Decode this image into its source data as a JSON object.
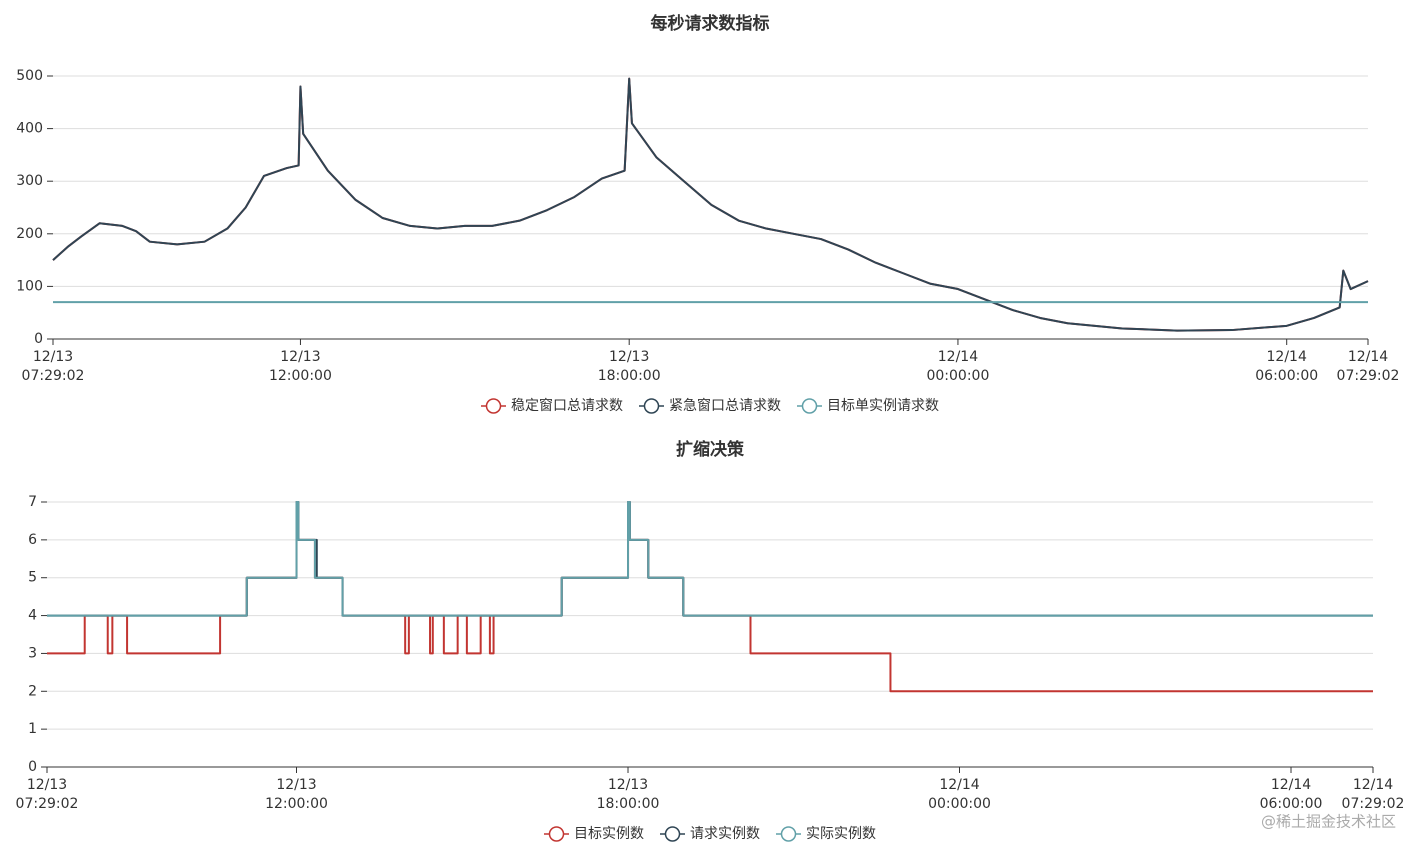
{
  "chart_data": [
    {
      "type": "line",
      "title": "每秒请求数指标",
      "xlim": [
        "12/13 07:29:02",
        "12/14 07:29:02"
      ],
      "xticks": [
        "12/13 07:29:02",
        "12/13 12:00:00",
        "12/13 18:00:00",
        "12/14 00:00:00",
        "12/14 06:00:00",
        "12/14 07:29:02"
      ],
      "ylim": [
        0,
        500
      ],
      "yticks": [
        0,
        100,
        200,
        300,
        400,
        500
      ],
      "grid": true,
      "series": [
        {
          "name": "稳定窗口总请求数",
          "color": "#c23531",
          "x": [
            "12/13 07:29:02",
            "12/13 07:45:00",
            "12/13 08:00:00",
            "12/13 08:20:00",
            "12/13 08:45:00",
            "12/13 09:00:00",
            "12/13 09:15:00",
            "12/13 09:45:00",
            "12/13 10:15:00",
            "12/13 10:40:00",
            "12/13 11:00:00",
            "12/13 11:20:00",
            "12/13 11:45:00",
            "12/13 11:58:00",
            "12/13 12:00:00",
            "12/13 12:03:00",
            "12/13 12:30:00",
            "12/13 13:00:00",
            "12/13 13:30:00",
            "12/13 14:00:00",
            "12/13 14:30:00",
            "12/13 15:00:00",
            "12/13 15:30:00",
            "12/13 16:00:00",
            "12/13 16:30:00",
            "12/13 17:00:00",
            "12/13 17:30:00",
            "12/13 17:55:00",
            "12/13 18:00:00",
            "12/13 18:03:00",
            "12/13 18:30:00",
            "12/13 19:00:00",
            "12/13 19:30:00",
            "12/13 20:00:00",
            "12/13 20:30:00",
            "12/13 21:00:00",
            "12/13 21:30:00",
            "12/13 22:00:00",
            "12/13 22:30:00",
            "12/13 23:00:00",
            "12/13 23:30:00",
            "12/14 00:00:00",
            "12/14 00:30:00",
            "12/14 01:00:00",
            "12/14 01:30:00",
            "12/14 02:00:00",
            "12/14 03:00:00",
            "12/14 04:00:00",
            "12/14 05:00:00",
            "12/14 06:00:00",
            "12/14 06:30:00",
            "12/14 06:58:00",
            "12/14 07:02:00",
            "12/14 07:10:00",
            "12/14 07:29:02"
          ],
          "values": [
            150,
            175,
            195,
            220,
            215,
            205,
            185,
            180,
            185,
            210,
            250,
            310,
            325,
            330,
            480,
            390,
            320,
            265,
            230,
            215,
            210,
            215,
            215,
            225,
            245,
            270,
            305,
            320,
            495,
            410,
            345,
            300,
            255,
            225,
            210,
            200,
            190,
            170,
            145,
            125,
            105,
            95,
            75,
            55,
            40,
            30,
            20,
            16,
            17,
            25,
            40,
            60,
            130,
            95,
            110
          ]
        },
        {
          "name": "紧急窗口总请求数",
          "color": "#2f4554",
          "x": [
            "12/13 07:29:02",
            "12/13 07:45:00",
            "12/13 08:00:00",
            "12/13 08:20:00",
            "12/13 08:45:00",
            "12/13 09:00:00",
            "12/13 09:15:00",
            "12/13 09:45:00",
            "12/13 10:15:00",
            "12/13 10:40:00",
            "12/13 11:00:00",
            "12/13 11:20:00",
            "12/13 11:45:00",
            "12/13 11:58:00",
            "12/13 12:00:00",
            "12/13 12:03:00",
            "12/13 12:30:00",
            "12/13 13:00:00",
            "12/13 13:30:00",
            "12/13 14:00:00",
            "12/13 14:30:00",
            "12/13 15:00:00",
            "12/13 15:30:00",
            "12/13 16:00:00",
            "12/13 16:30:00",
            "12/13 17:00:00",
            "12/13 17:30:00",
            "12/13 17:55:00",
            "12/13 18:00:00",
            "12/13 18:03:00",
            "12/13 18:30:00",
            "12/13 19:00:00",
            "12/13 19:30:00",
            "12/13 20:00:00",
            "12/13 20:30:00",
            "12/13 21:00:00",
            "12/13 21:30:00",
            "12/13 22:00:00",
            "12/13 22:30:00",
            "12/13 23:00:00",
            "12/13 23:30:00",
            "12/14 00:00:00",
            "12/14 00:30:00",
            "12/14 01:00:00",
            "12/14 01:30:00",
            "12/14 02:00:00",
            "12/14 03:00:00",
            "12/14 04:00:00",
            "12/14 05:00:00",
            "12/14 06:00:00",
            "12/14 06:30:00",
            "12/14 06:58:00",
            "12/14 07:02:00",
            "12/14 07:10:00",
            "12/14 07:29:02"
          ],
          "values": [
            150,
            175,
            195,
            220,
            215,
            205,
            185,
            180,
            185,
            210,
            250,
            310,
            325,
            330,
            480,
            390,
            320,
            265,
            230,
            215,
            210,
            215,
            215,
            225,
            245,
            270,
            305,
            320,
            495,
            410,
            345,
            300,
            255,
            225,
            210,
            200,
            190,
            170,
            145,
            125,
            105,
            95,
            75,
            55,
            40,
            30,
            20,
            16,
            17,
            25,
            40,
            60,
            130,
            95,
            110
          ]
        },
        {
          "name": "目标单实例请求数",
          "color": "#61a0a8",
          "x": [
            "12/13 07:29:02",
            "12/14 07:29:02"
          ],
          "values": [
            70,
            70
          ]
        }
      ]
    },
    {
      "type": "line",
      "title": "扩缩决策",
      "xlim": [
        "12/13 07:29:02",
        "12/14 07:29:02"
      ],
      "xticks": [
        "12/13 07:29:02",
        "12/13 12:00:00",
        "12/13 18:00:00",
        "12/14 00:00:00",
        "12/14 06:00:00",
        "12/14 07:29:02"
      ],
      "ylim": [
        0,
        7
      ],
      "yticks": [
        0,
        1,
        2,
        3,
        4,
        5,
        6,
        7
      ],
      "grid": true,
      "series": [
        {
          "name": "目标实例数",
          "color": "#c23531",
          "x": [
            "12/13 07:29:02",
            "12/13 08:10:00",
            "12/13 08:10:00",
            "12/13 08:35:00",
            "12/13 08:35:00",
            "12/13 08:40:00",
            "12/13 08:40:00",
            "12/13 08:56:00",
            "12/13 08:56:00",
            "12/13 10:37:00",
            "12/13 10:37:00",
            "12/13 11:06:00",
            "12/13 11:06:00",
            "12/13 12:00:00",
            "12/13 12:00:00",
            "12/13 12:02:00",
            "12/13 12:02:00",
            "12/13 12:20:00",
            "12/13 12:20:00",
            "12/13 12:50:00",
            "12/13 12:50:00",
            "12/13 13:58:00",
            "12/13 13:58:00",
            "12/13 14:02:00",
            "12/13 14:02:00",
            "12/13 14:25:00",
            "12/13 14:25:00",
            "12/13 14:28:00",
            "12/13 14:28:00",
            "12/13 14:40:00",
            "12/13 14:40:00",
            "12/13 14:55:00",
            "12/13 14:55:00",
            "12/13 15:05:00",
            "12/13 15:05:00",
            "12/13 15:20:00",
            "12/13 15:20:00",
            "12/13 15:30:00",
            "12/13 15:30:00",
            "12/13 15:34:00",
            "12/13 15:34:00",
            "12/13 16:48:00",
            "12/13 16:48:00",
            "12/13 18:00:00",
            "12/13 18:00:00",
            "12/13 18:02:00",
            "12/13 18:02:00",
            "12/13 18:22:00",
            "12/13 18:22:00",
            "12/13 19:00:00",
            "12/13 19:00:00",
            "12/13 20:13:00",
            "12/13 20:13:00",
            "12/13 22:45:00",
            "12/13 22:45:00",
            "12/14 07:29:02"
          ],
          "values": [
            3,
            3,
            4,
            4,
            3,
            3,
            4,
            4,
            3,
            3,
            4,
            4,
            5,
            5,
            7,
            7,
            6,
            6,
            5,
            5,
            4,
            4,
            3,
            3,
            4,
            4,
            3,
            3,
            4,
            4,
            3,
            3,
            4,
            4,
            3,
            3,
            4,
            4,
            3,
            3,
            4,
            4,
            5,
            5,
            7,
            7,
            6,
            6,
            5,
            5,
            4,
            4,
            3,
            3,
            2,
            2
          ]
        },
        {
          "name": "请求实例数",
          "color": "#2f4554",
          "x": [
            "12/13 07:29:02",
            "12/13 11:06:00",
            "12/13 11:06:00",
            "12/13 12:00:00",
            "12/13 12:00:00",
            "12/13 12:02:00",
            "12/13 12:02:00",
            "12/13 12:22:00",
            "12/13 12:22:00",
            "12/13 12:50:00",
            "12/13 12:50:00",
            "12/13 16:48:00",
            "12/13 16:48:00",
            "12/13 18:00:00",
            "12/13 18:00:00",
            "12/13 18:02:00",
            "12/13 18:02:00",
            "12/13 18:22:00",
            "12/13 18:22:00",
            "12/13 19:00:00",
            "12/13 19:00:00",
            "12/14 07:29:02"
          ],
          "values": [
            4,
            4,
            5,
            5,
            7,
            7,
            6,
            6,
            5,
            5,
            4,
            4,
            5,
            5,
            7,
            7,
            6,
            6,
            5,
            5,
            4,
            4
          ]
        },
        {
          "name": "实际实例数",
          "color": "#61a0a8",
          "x": [
            "12/13 07:29:02",
            "12/13 11:06:00",
            "12/13 11:06:00",
            "12/13 12:00:00",
            "12/13 12:00:00",
            "12/13 12:02:00",
            "12/13 12:02:00",
            "12/13 12:20:00",
            "12/13 12:20:00",
            "12/13 12:50:00",
            "12/13 12:50:00",
            "12/13 16:48:00",
            "12/13 16:48:00",
            "12/13 18:00:00",
            "12/13 18:00:00",
            "12/13 18:02:00",
            "12/13 18:02:00",
            "12/13 18:22:00",
            "12/13 18:22:00",
            "12/13 19:00:00",
            "12/13 19:00:00",
            "12/14 07:29:02"
          ],
          "values": [
            4,
            4,
            5,
            5,
            7,
            7,
            6,
            6,
            5,
            5,
            4,
            4,
            5,
            5,
            7,
            7,
            6,
            6,
            5,
            5,
            4,
            4
          ]
        }
      ]
    }
  ],
  "watermark": "@稀土掘金技术社区"
}
